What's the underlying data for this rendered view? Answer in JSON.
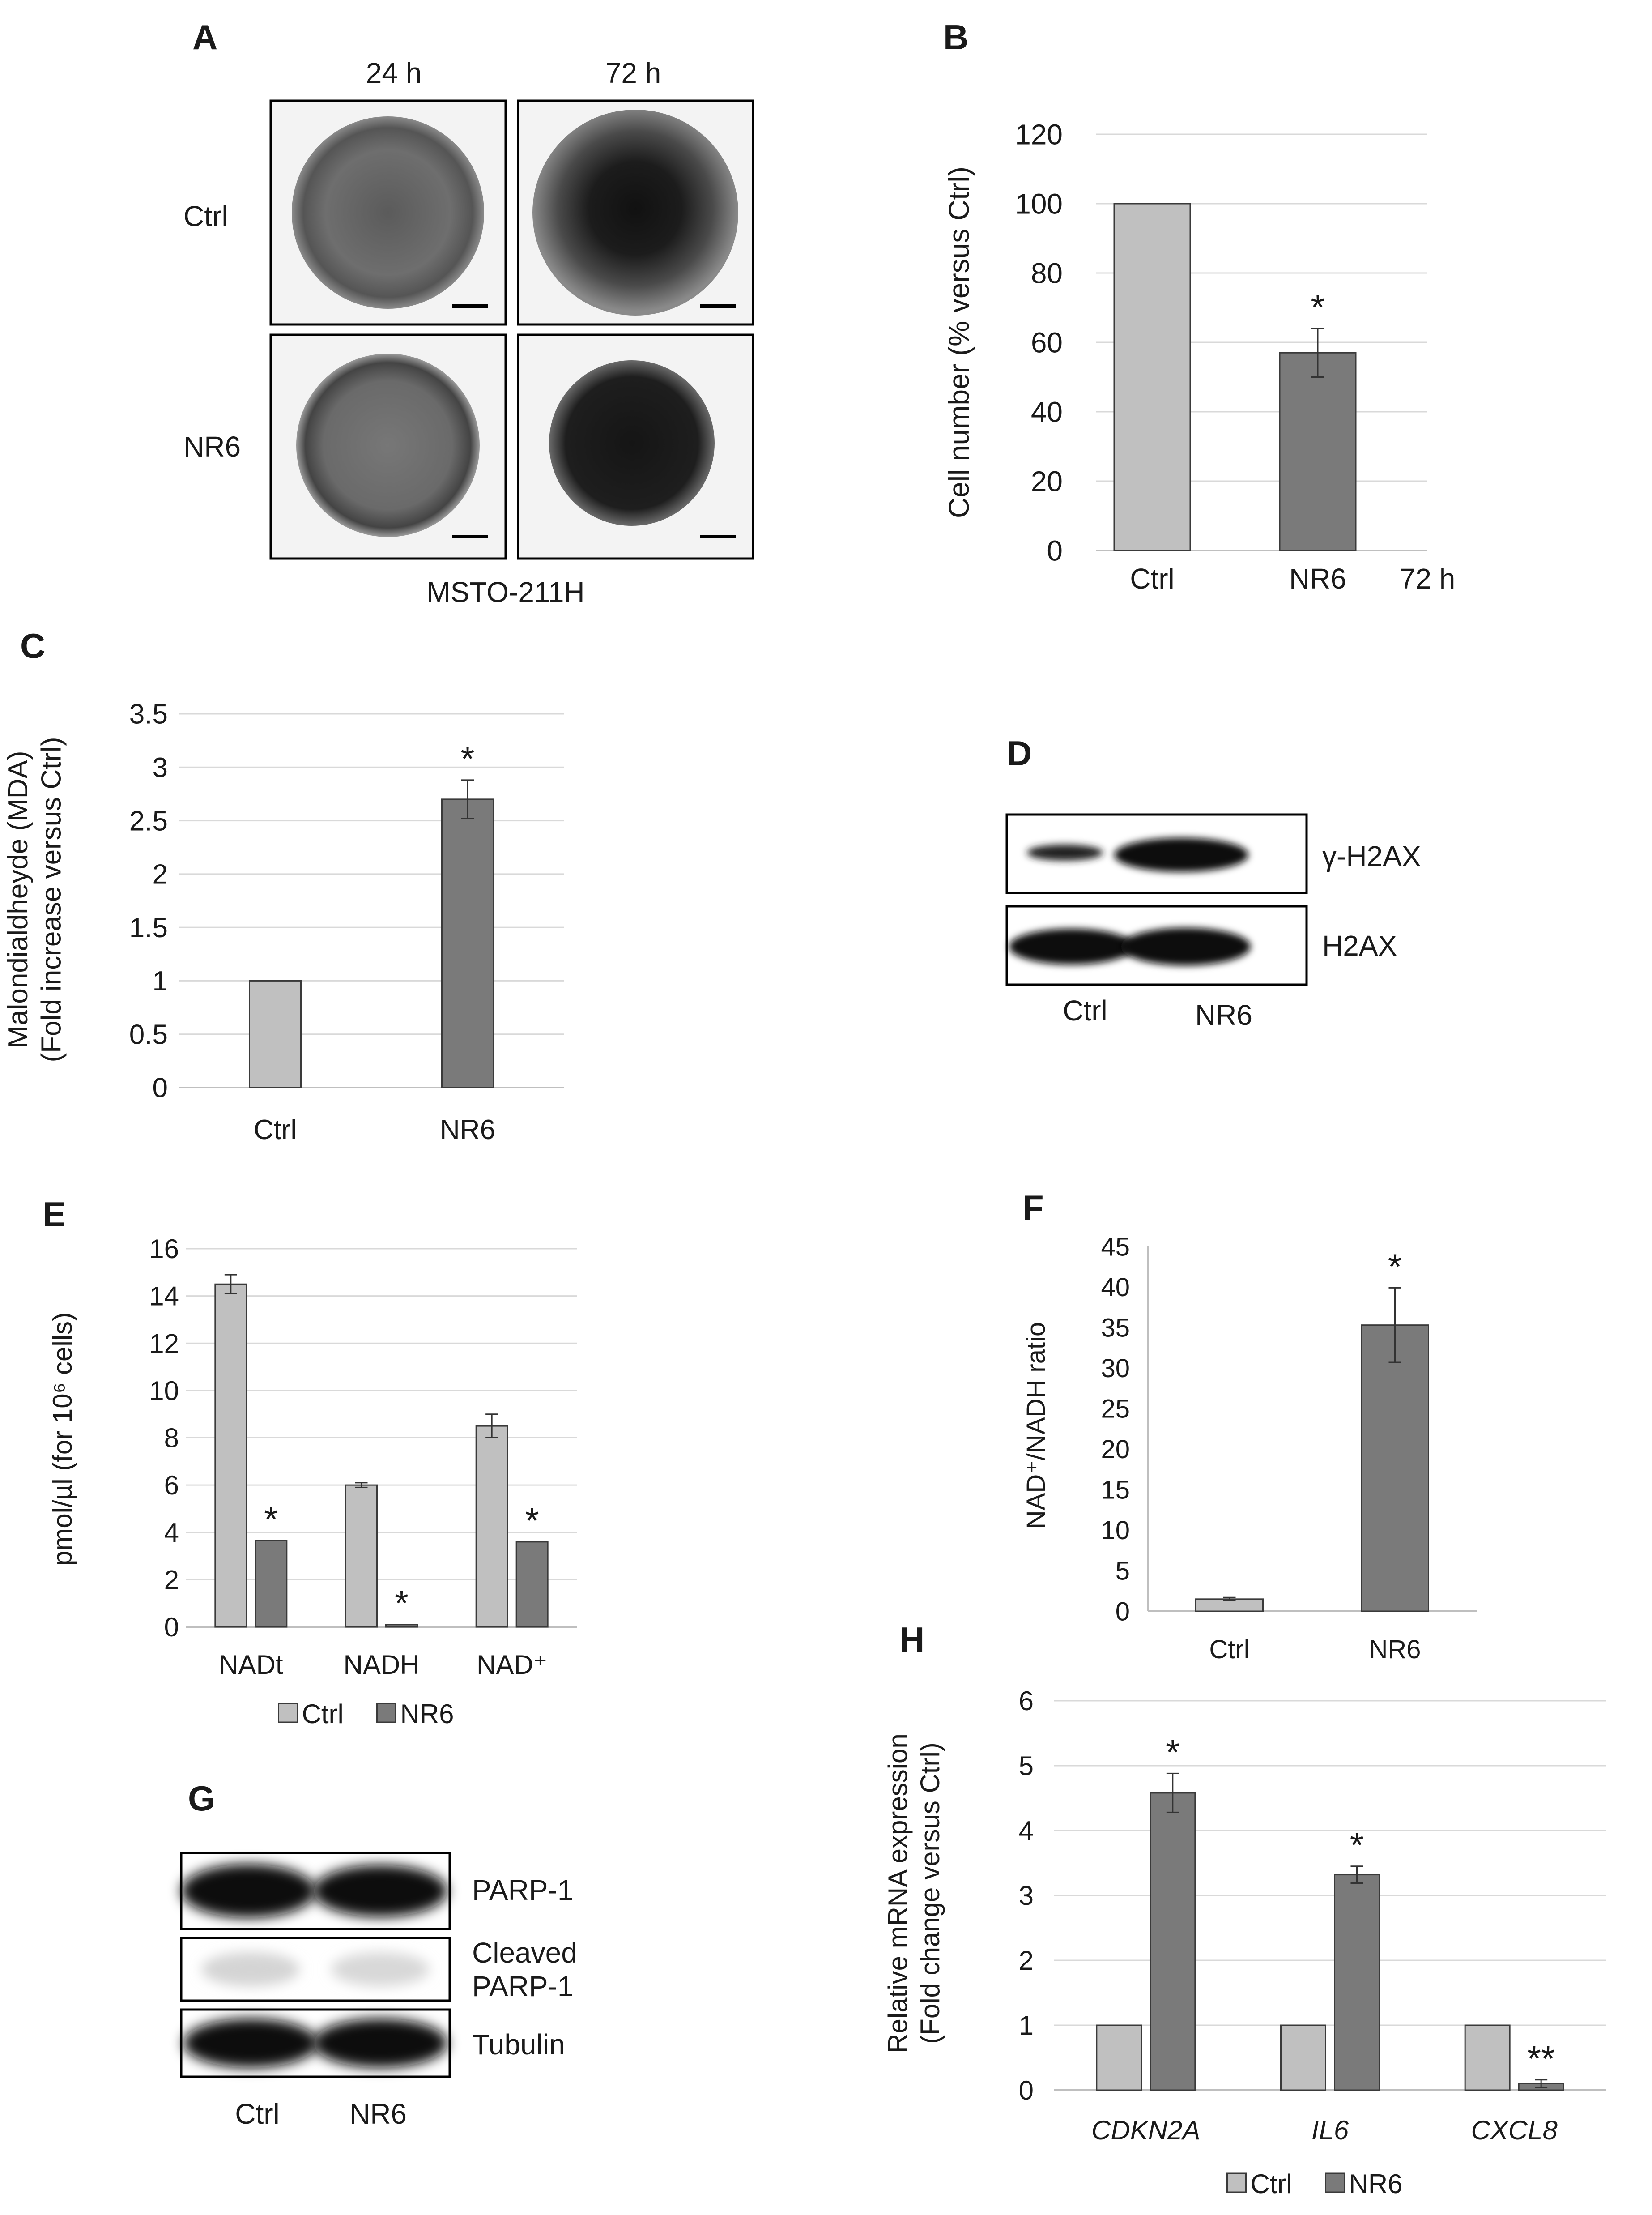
{
  "panels": {
    "A": {
      "letter": "A",
      "columns": [
        "24 h",
        "72 h"
      ],
      "rows": [
        "Ctrl",
        "NR6"
      ],
      "caption": "MSTO-211H"
    },
    "D": {
      "letter": "D",
      "bands": [
        "γ-H2AX",
        "H2AX"
      ],
      "lanes": [
        "Ctrl",
        "NR6"
      ]
    },
    "G": {
      "letter": "G",
      "bands": [
        "PARP-1",
        "Cleaved",
        "PARP-1",
        "Tubulin"
      ],
      "lanes": [
        "Ctrl",
        "NR6"
      ]
    }
  },
  "colors": {
    "ctrl": "#c0c0c0",
    "nr6": "#7a7a7a",
    "grid": "#d9d9d9",
    "axis": "#bfbfbf"
  },
  "chart_data": [
    {
      "panel": "B",
      "type": "bar",
      "categories": [
        "Ctrl",
        "NR6"
      ],
      "values": [
        100,
        57
      ],
      "errors": [
        0,
        7
      ],
      "significance": [
        "",
        "*"
      ],
      "extra_label": "72 h",
      "ylabel": "Cell number  (% versus Ctrl)",
      "ylim": [
        0,
        120
      ],
      "yticks": [
        0,
        20,
        40,
        60,
        80,
        100,
        120
      ],
      "grid": true
    },
    {
      "panel": "C",
      "type": "bar",
      "categories": [
        "Ctrl",
        "NR6"
      ],
      "values": [
        1,
        2.7
      ],
      "errors": [
        0,
        0.18
      ],
      "significance": [
        "",
        "*"
      ],
      "ylabel": [
        "Malondialdheyde  (MDA)",
        "(Fold increase versus Ctrl)"
      ],
      "ylim": [
        0,
        3.5
      ],
      "yticks": [
        0,
        0.5,
        1,
        1.5,
        2,
        2.5,
        3,
        3.5
      ],
      "ytick_labels": [
        "0",
        "0.5",
        "1",
        "1.5",
        "2",
        "2.5",
        "3",
        "3.5"
      ],
      "grid": true
    },
    {
      "panel": "E",
      "type": "bar",
      "categories": [
        "NADt",
        "NADH",
        "NAD⁺"
      ],
      "series": [
        {
          "name": "Ctrl",
          "values": [
            14.5,
            6.0,
            8.5
          ],
          "errors": [
            0.4,
            0.1,
            0.5
          ],
          "significance": [
            "",
            "",
            ""
          ]
        },
        {
          "name": "NR6",
          "values": [
            3.65,
            0.1,
            3.6
          ],
          "errors": [
            0,
            0,
            0
          ],
          "significance": [
            "*",
            "*",
            "*"
          ]
        }
      ],
      "ylabel": "pmol/µl  (for 10⁶ cells)",
      "ylim": [
        0,
        16
      ],
      "yticks": [
        0,
        2,
        4,
        6,
        8,
        10,
        12,
        14,
        16
      ],
      "grid": true,
      "legend": "bottom"
    },
    {
      "panel": "F",
      "type": "bar",
      "categories": [
        "Ctrl",
        "NR6"
      ],
      "values": [
        1.5,
        35.3
      ],
      "errors": [
        0.2,
        4.6
      ],
      "significance": [
        "",
        "*"
      ],
      "ylabel": "NAD⁺/NADH ratio",
      "ylim": [
        0,
        45
      ],
      "yticks": [
        0,
        5,
        10,
        15,
        20,
        25,
        30,
        35,
        40,
        45
      ],
      "grid": false
    },
    {
      "panel": "H",
      "type": "bar",
      "categories": [
        "CDKN2A",
        "IL6",
        "CXCL8"
      ],
      "series": [
        {
          "name": "Ctrl",
          "values": [
            1,
            1,
            1
          ],
          "errors": [
            0,
            0,
            0
          ],
          "significance": [
            "",
            "",
            ""
          ]
        },
        {
          "name": "NR6",
          "values": [
            4.58,
            3.32,
            0.1
          ],
          "errors": [
            0.3,
            0.13,
            0.06
          ],
          "significance": [
            "*",
            "*",
            "**"
          ]
        }
      ],
      "ylabel": [
        "Relative mRNA expression",
        "(Fold change versus Ctrl)"
      ],
      "ylim": [
        0,
        6
      ],
      "yticks": [
        0,
        1,
        2,
        3,
        4,
        5,
        6
      ],
      "grid": true,
      "legend": "bottom"
    }
  ]
}
